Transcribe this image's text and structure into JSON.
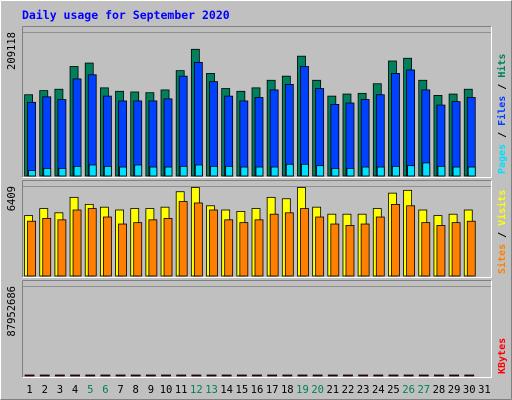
{
  "chart_data": [
    {
      "type": "bar",
      "title": "Daily usage for September 2020",
      "ymax_label": "209118",
      "ylim": [
        0,
        209118
      ],
      "legend": [
        {
          "name": "Hits",
          "color": "#00805c"
        },
        {
          "name": "Files",
          "color": "#0040ff"
        },
        {
          "name": "Pages",
          "color": "#00e0ff"
        }
      ],
      "categories": [
        "1",
        "2",
        "3",
        "4",
        "5",
        "6",
        "7",
        "8",
        "9",
        "10",
        "11",
        "12",
        "13",
        "14",
        "15",
        "16",
        "17",
        "18",
        "19",
        "20",
        "21",
        "22",
        "23",
        "24",
        "25",
        "26",
        "27",
        "28",
        "29",
        "30",
        "31"
      ],
      "weekend_days": [
        "5",
        "6",
        "12",
        "13",
        "19",
        "20",
        "26",
        "27"
      ],
      "series": [
        {
          "name": "Hits",
          "values": [
            118000,
            124000,
            126000,
            159000,
            164000,
            128000,
            123000,
            122000,
            121000,
            125000,
            153000,
            184000,
            149000,
            127000,
            123000,
            128000,
            139000,
            145000,
            174000,
            139000,
            116000,
            119000,
            120000,
            134000,
            167000,
            171000,
            139000,
            117000,
            119000,
            126000,
            null
          ]
        },
        {
          "name": "Files",
          "values": [
            107000,
            115000,
            111000,
            141000,
            147000,
            116000,
            109000,
            109000,
            109000,
            112000,
            145000,
            165000,
            137000,
            116000,
            109000,
            114000,
            125000,
            133000,
            159000,
            127000,
            104000,
            106000,
            111000,
            118000,
            149000,
            154000,
            125000,
            103000,
            108000,
            114000,
            null
          ]
        },
        {
          "name": "Pages",
          "values": [
            8000,
            11000,
            11000,
            14000,
            16000,
            14000,
            13000,
            16000,
            13000,
            13000,
            14000,
            16000,
            14000,
            14000,
            13000,
            13000,
            13000,
            17000,
            17000,
            15000,
            11000,
            11000,
            13000,
            13000,
            14000,
            15000,
            19000,
            14000,
            13000,
            13000,
            null
          ]
        }
      ]
    },
    {
      "type": "bar",
      "ymax_label": "6409",
      "ylim": [
        0,
        6409
      ],
      "legend": [
        {
          "name": "Visits",
          "color": "#ffff00"
        },
        {
          "name": "Sites",
          "color": "#ff8000"
        }
      ],
      "categories": [
        "1",
        "2",
        "3",
        "4",
        "5",
        "6",
        "7",
        "8",
        "9",
        "10",
        "11",
        "12",
        "13",
        "14",
        "15",
        "16",
        "17",
        "18",
        "19",
        "20",
        "21",
        "22",
        "23",
        "24",
        "25",
        "26",
        "27",
        "28",
        "29",
        "30",
        "31"
      ],
      "series": [
        {
          "name": "Visits",
          "values": [
            4300,
            4800,
            4500,
            5600,
            5100,
            4900,
            4700,
            4800,
            4800,
            4900,
            6000,
            6300,
            5000,
            4700,
            4600,
            4800,
            5600,
            5500,
            6300,
            4900,
            4400,
            4400,
            4400,
            4800,
            5900,
            6100,
            4700,
            4300,
            4400,
            4700,
            null
          ]
        },
        {
          "name": "Sites",
          "values": [
            3900,
            4100,
            4000,
            4700,
            4800,
            4200,
            3700,
            3800,
            4000,
            4100,
            5300,
            5200,
            4700,
            4000,
            3800,
            4000,
            4400,
            4500,
            4800,
            4200,
            3700,
            3600,
            3700,
            4200,
            5100,
            5000,
            3800,
            3600,
            3800,
            3900,
            null
          ]
        }
      ]
    },
    {
      "type": "bar",
      "ymax_label": "87952686",
      "ylim": [
        0,
        87952686
      ],
      "legend": [
        {
          "name": "KBytes",
          "color": "#ff0000"
        }
      ],
      "categories": [
        "1",
        "2",
        "3",
        "4",
        "5",
        "6",
        "7",
        "8",
        "9",
        "10",
        "11",
        "12",
        "13",
        "14",
        "15",
        "16",
        "17",
        "18",
        "19",
        "20",
        "21",
        "22",
        "23",
        "24",
        "25",
        "26",
        "27",
        "28",
        "29",
        "30",
        "31"
      ],
      "series": [
        {
          "name": "KBytes",
          "values": [
            54000,
            57000,
            56000,
            72000,
            75000,
            58000,
            53000,
            53000,
            54000,
            60000,
            77000,
            88000,
            65000,
            54000,
            54000,
            56000,
            62000,
            77000,
            83000,
            64000,
            50000,
            55000,
            55000,
            64000,
            77000,
            80000,
            62000,
            51000,
            56000,
            59000,
            null
          ]
        }
      ]
    }
  ]
}
